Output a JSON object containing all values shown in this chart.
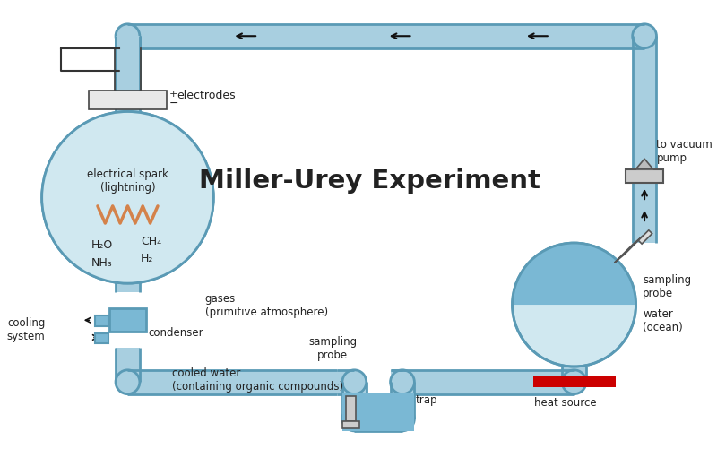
{
  "title": "Miller-Urey Experiment",
  "bg_color": "#ffffff",
  "pipe_color": "#a8cfe0",
  "pipe_edge_color": "#5a9ab5",
  "pipe_lw": 2.0,
  "flask_fill_color": "#d0e8f0",
  "water_color": "#7ab8d4",
  "lightning_color": "#d4824a",
  "heat_color": "#cc0000",
  "text_color": "#222222",
  "arrow_color": "#111111",
  "labels": {
    "title": "Miller-Urey Experiment",
    "electrodes": "electrodes",
    "electrical_spark": "electrical spark\n(lightning)",
    "h2o": "H₂O",
    "ch4": "CH₄",
    "nh3": "NH₃",
    "h2": "H₂",
    "gases": "gases\n(primitive atmosphere)",
    "cooling_system": "cooling\nsystem",
    "condenser": "condenser",
    "cooled_water": "cooled water\n(containing organic compounds)",
    "sampling_probe_bottom": "sampling\nprobe",
    "trap": "trap",
    "sampling_probe_right": "sampling\nprobe",
    "water_ocean": "water\n(ocean)",
    "heat_source": "heat source",
    "to_vacuum_pump": "to vacuum\npump"
  }
}
